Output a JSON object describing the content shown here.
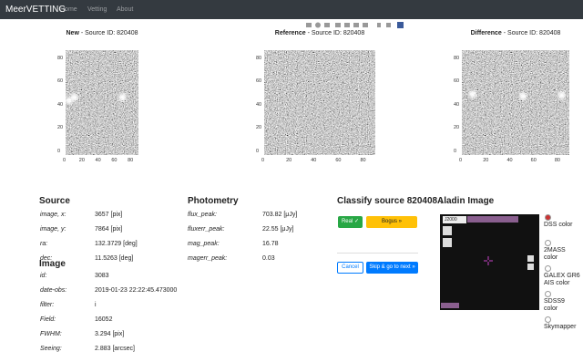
{
  "navbar": {
    "brand": "MeerVETTING",
    "links": [
      "Home",
      "Vetting",
      "About"
    ]
  },
  "panels": [
    {
      "label": "New",
      "suffix": " - Source ID: 820408"
    },
    {
      "label": "Reference",
      "suffix": " - Source ID: 820408"
    },
    {
      "label": "Difference",
      "suffix": " - Source ID: 820408"
    }
  ],
  "axis_ticks": {
    "x": [
      "0",
      "20",
      "40",
      "60",
      "80"
    ],
    "y": [
      "0",
      "20",
      "40",
      "60",
      "80"
    ]
  },
  "source": {
    "title": "Source",
    "rows": [
      [
        "image, x:",
        "3657 [pix]"
      ],
      [
        "image, y:",
        "7864 [pix]"
      ],
      [
        "ra:",
        "132.3729 [deg]"
      ],
      [
        "dec:",
        "11.5263 [deg]"
      ]
    ]
  },
  "image": {
    "title": "Image",
    "rows": [
      [
        "id:",
        "3083"
      ],
      [
        "date-obs:",
        "2019-01-23 22:22:45.473000"
      ],
      [
        "filter:",
        "i"
      ],
      [
        "Field:",
        "16052"
      ],
      [
        "FWHM:",
        "3.294 [pix]"
      ],
      [
        "Seeing:",
        "2.883 [arcsec]"
      ]
    ]
  },
  "photometry": {
    "title": "Photometry",
    "rows": [
      [
        "flux_peak:",
        "703.82 [μJy]"
      ],
      [
        "fluxerr_peak:",
        "22.55 [μJy]"
      ],
      [
        "mag_peak:",
        "16.78"
      ],
      [
        "magerr_peak:",
        "0.03"
      ]
    ]
  },
  "classify": {
    "title": "Classify source 820408 :",
    "real": "Real ✓",
    "bogus": "Bogus »",
    "cancel": "Cancel",
    "skip": "Skip & go to next »"
  },
  "aladin": {
    "title": "Aladin Image",
    "frame": "J2000",
    "options": [
      "DSS color",
      "2MASS color",
      "GALEX GR6 AIS color",
      "SDSS9 color",
      "Skymapper"
    ]
  }
}
